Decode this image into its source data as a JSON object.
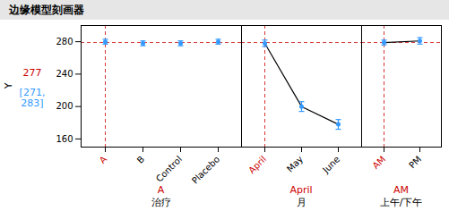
{
  "chart_data": {
    "type": "errorbar",
    "title": "边缘模型刻画器",
    "ylabel": "Y",
    "ylim": [
      150,
      300
    ],
    "yticks": [
      160,
      200,
      240,
      280
    ],
    "grid": false,
    "color": "#3399ff",
    "selected_color": "#cc0000",
    "reference_line": {
      "y": 279,
      "color": "#cc0000"
    },
    "annotations": [
      {
        "text": "277",
        "color": "#cc0000"
      },
      {
        "text": "[271,\n283]",
        "color": "#3399ff"
      }
    ],
    "panels": [
      {
        "type": "scatter",
        "categories": [
          "A",
          "B",
          "Control",
          "Placebo"
        ],
        "values": [
          280,
          278,
          278,
          280
        ],
        "errors": [
          3,
          3,
          3,
          3
        ],
        "xlabel": "治疗",
        "selected_label": "A"
      },
      {
        "type": "line",
        "categories": [
          "April",
          "May",
          "June"
        ],
        "values": [
          278,
          200,
          178
        ],
        "errors": [
          4,
          6,
          6
        ],
        "xlabel": "月",
        "selected_label": "April"
      },
      {
        "type": "line",
        "categories": [
          "AM",
          "PM"
        ],
        "values": [
          279,
          281
        ],
        "errors": [
          3,
          4
        ],
        "xlabel": "上午/下午",
        "selected_label": "AM"
      }
    ]
  }
}
